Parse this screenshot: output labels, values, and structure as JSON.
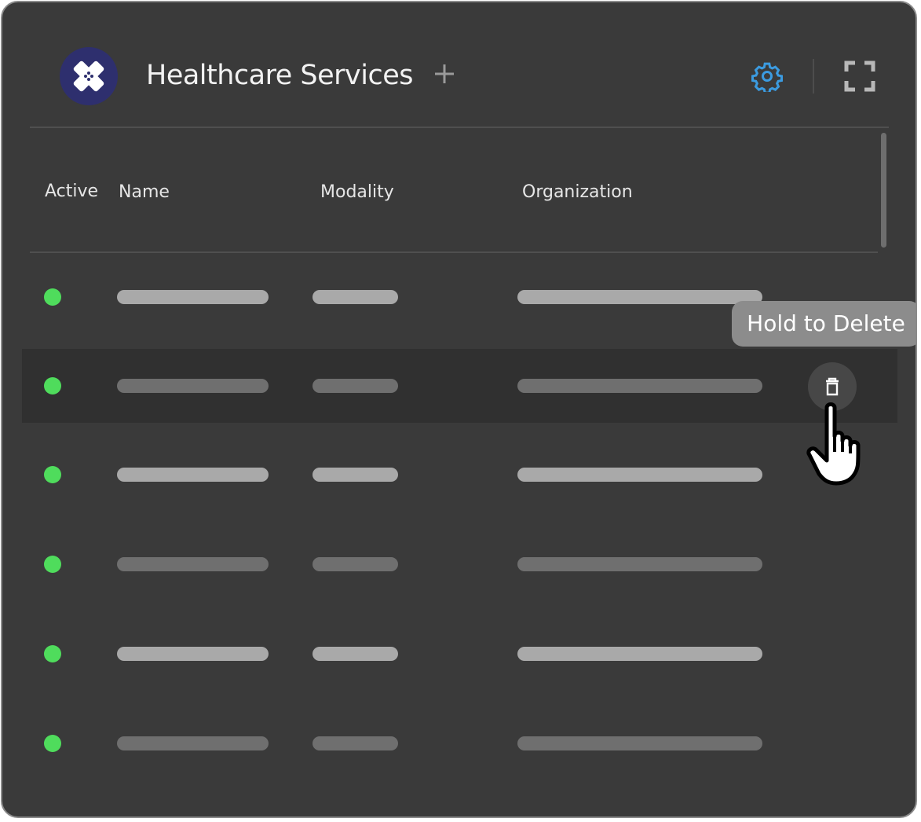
{
  "header": {
    "title": "Healthcare Services",
    "logo_icon": "bandage-icon",
    "add_icon": "plus-icon",
    "settings_icon": "gear-icon",
    "fullscreen_icon": "fullscreen-icon"
  },
  "colors": {
    "accent": "#3b9be0",
    "active": "#4fdc5c",
    "logo_bg": "#2e2f6e"
  },
  "table": {
    "columns": [
      "Active",
      "Name",
      "Modality",
      "Organization"
    ],
    "rows": [
      {
        "active": true
      },
      {
        "active": true,
        "hovered": true
      },
      {
        "active": true
      },
      {
        "active": true
      },
      {
        "active": true
      },
      {
        "active": true
      }
    ]
  },
  "tooltip": {
    "text": "Hold to Delete"
  },
  "row_action": {
    "icon": "trash-icon"
  }
}
